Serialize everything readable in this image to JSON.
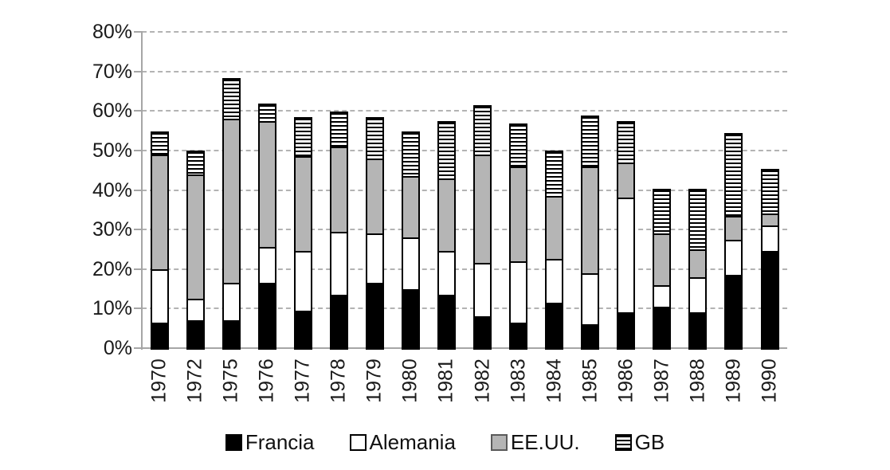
{
  "chart_data": {
    "type": "bar",
    "stacked": true,
    "title": "",
    "xlabel": "",
    "ylabel": "",
    "categories": [
      "1970",
      "1972",
      "1975",
      "1976",
      "1977",
      "1978",
      "1979",
      "1980",
      "1981",
      "1982",
      "1983",
      "1984",
      "1985",
      "1986",
      "1987",
      "1988",
      "1989",
      "1990"
    ],
    "series": [
      {
        "name": "Francia",
        "pattern": "solid",
        "fill": "#000000",
        "values": [
          6.5,
          7,
          7,
          16.5,
          9.5,
          13.5,
          16.5,
          15,
          13.5,
          8,
          6.5,
          11.5,
          6,
          9,
          10.5,
          9,
          18.5,
          24.5
        ]
      },
      {
        "name": "Alemania",
        "pattern": "solid",
        "fill": "#ffffff",
        "values": [
          13.5,
          5.5,
          9.5,
          9,
          15,
          16,
          12.5,
          13,
          11,
          13.5,
          15.5,
          11,
          13,
          29,
          5.5,
          9,
          9,
          6.5
        ]
      },
      {
        "name": "EE.UU.",
        "pattern": "solid",
        "fill": "#b5b5b5",
        "values": [
          29,
          31.5,
          41.5,
          32,
          24,
          21.5,
          19,
          15.5,
          18.5,
          27.5,
          24,
          16,
          27,
          9,
          13,
          7,
          6,
          3
        ]
      },
      {
        "name": "GB",
        "pattern": "hstripes",
        "fill": "#ffffff",
        "values": [
          5.5,
          5.5,
          10,
          4,
          9.5,
          8.5,
          10,
          11,
          14,
          12,
          10.5,
          11,
          12.5,
          10,
          11,
          15,
          20.5,
          11
        ]
      }
    ],
    "ylim": [
      0,
      80
    ],
    "ytick_step": 10,
    "ytick_labels": [
      "0%",
      "10%",
      "20%",
      "30%",
      "40%",
      "50%",
      "60%",
      "70%",
      "80%"
    ],
    "grid": "horizontal-dashed",
    "legend_position": "bottom",
    "colors": {
      "bar_border": "#000000",
      "stripe": "#000000",
      "gray_fill": "#b5b5b5",
      "grid_line": "#b3b3b3",
      "axis_line": "#a6a6a6",
      "text": "#1a1a1a"
    }
  }
}
